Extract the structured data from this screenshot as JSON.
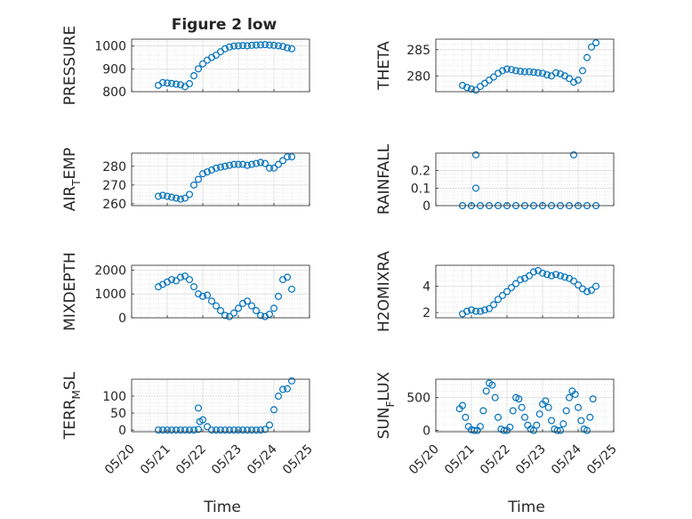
{
  "figure_title": "Figure 2 low",
  "marker_color": "#0072BD",
  "chart_data": [
    {
      "id": "pressure",
      "type": "scatter",
      "ylabel": {
        "main": "PRESSURE"
      },
      "ylim": [
        800,
        1030
      ],
      "yticks": [
        800,
        900,
        1000
      ],
      "ytick_labels": [
        "800",
        "900",
        "1000"
      ],
      "x": [
        "2022-05-20T18:00",
        "2022-05-20T21:00",
        "2022-05-21T00:00",
        "2022-05-21T03:00",
        "2022-05-21T06:00",
        "2022-05-21T09:00",
        "2022-05-21T12:00",
        "2022-05-21T15:00",
        "2022-05-21T18:00",
        "2022-05-21T21:00",
        "2022-05-22T00:00",
        "2022-05-22T03:00",
        "2022-05-22T06:00",
        "2022-05-22T09:00",
        "2022-05-22T12:00",
        "2022-05-22T15:00",
        "2022-05-22T18:00",
        "2022-05-22T21:00",
        "2022-05-23T00:00",
        "2022-05-23T03:00",
        "2022-05-23T06:00",
        "2022-05-23T09:00",
        "2022-05-23T12:00",
        "2022-05-23T15:00",
        "2022-05-23T18:00",
        "2022-05-23T21:00",
        "2022-05-24T00:00",
        "2022-05-24T03:00",
        "2022-05-24T06:00",
        "2022-05-24T09:00",
        "2022-05-24T12:00"
      ],
      "y": [
        828,
        840,
        838,
        836,
        833,
        830,
        822,
        835,
        870,
        900,
        922,
        938,
        950,
        960,
        975,
        988,
        996,
        1000,
        1001,
        1002,
        1001,
        1003,
        1004,
        1005,
        1006,
        1004,
        1003,
        1001,
        998,
        992,
        988
      ]
    },
    {
      "id": "theta",
      "type": "scatter",
      "ylabel": {
        "main": "THETA"
      },
      "ylim": [
        277,
        287
      ],
      "yticks": [
        280,
        285
      ],
      "ytick_labels": [
        "280",
        "285"
      ],
      "x": [
        "2022-05-20T18:00",
        "2022-05-20T21:00",
        "2022-05-21T00:00",
        "2022-05-21T03:00",
        "2022-05-21T06:00",
        "2022-05-21T09:00",
        "2022-05-21T12:00",
        "2022-05-21T15:00",
        "2022-05-21T18:00",
        "2022-05-21T21:00",
        "2022-05-22T00:00",
        "2022-05-22T03:00",
        "2022-05-22T06:00",
        "2022-05-22T09:00",
        "2022-05-22T12:00",
        "2022-05-22T15:00",
        "2022-05-22T18:00",
        "2022-05-22T21:00",
        "2022-05-23T00:00",
        "2022-05-23T03:00",
        "2022-05-23T06:00",
        "2022-05-23T09:00",
        "2022-05-23T12:00",
        "2022-05-23T15:00",
        "2022-05-23T18:00",
        "2022-05-23T21:00",
        "2022-05-24T00:00",
        "2022-05-24T03:00",
        "2022-05-24T06:00",
        "2022-05-24T09:00",
        "2022-05-24T12:00"
      ],
      "y": [
        278.2,
        277.8,
        277.5,
        277.3,
        278.0,
        278.6,
        279.2,
        279.8,
        280.5,
        281.0,
        281.3,
        281.2,
        281.0,
        280.9,
        280.8,
        280.8,
        280.7,
        280.6,
        280.5,
        280.2,
        280.0,
        280.6,
        280.4,
        280.0,
        279.5,
        278.8,
        279.2,
        281.0,
        283.5,
        285.5,
        286.3
      ]
    },
    {
      "id": "air-temp",
      "type": "scatter",
      "ylabel": {
        "main": "AIR",
        "sub": "T",
        "tail": "EMP"
      },
      "ylim": [
        259,
        287
      ],
      "yticks": [
        260,
        270,
        280
      ],
      "ytick_labels": [
        "260",
        "270",
        "280"
      ],
      "x": [
        "2022-05-20T18:00",
        "2022-05-20T21:00",
        "2022-05-21T00:00",
        "2022-05-21T03:00",
        "2022-05-21T06:00",
        "2022-05-21T09:00",
        "2022-05-21T12:00",
        "2022-05-21T15:00",
        "2022-05-21T18:00",
        "2022-05-21T21:00",
        "2022-05-22T00:00",
        "2022-05-22T03:00",
        "2022-05-22T06:00",
        "2022-05-22T09:00",
        "2022-05-22T12:00",
        "2022-05-22T15:00",
        "2022-05-22T18:00",
        "2022-05-22T21:00",
        "2022-05-23T00:00",
        "2022-05-23T03:00",
        "2022-05-23T06:00",
        "2022-05-23T09:00",
        "2022-05-23T12:00",
        "2022-05-23T15:00",
        "2022-05-23T18:00",
        "2022-05-23T21:00",
        "2022-05-24T00:00",
        "2022-05-24T03:00",
        "2022-05-24T06:00",
        "2022-05-24T09:00",
        "2022-05-24T12:00"
      ],
      "y": [
        264,
        264.5,
        264,
        263.5,
        263,
        262.5,
        263,
        265,
        270,
        273,
        276,
        277,
        278,
        279,
        279.5,
        280,
        280.5,
        281,
        281,
        281,
        280.5,
        281,
        281.5,
        282,
        281.5,
        279,
        279,
        281,
        283,
        285,
        285
      ]
    },
    {
      "id": "rainfall",
      "type": "scatter",
      "ylabel": {
        "main": "RAINFALL"
      },
      "ylim": [
        0,
        0.3
      ],
      "yticks": [
        0,
        0.1,
        0.2
      ],
      "ytick_labels": [
        "0",
        "0.1",
        "0.2"
      ],
      "x": [
        "2022-05-20T18:00",
        "2022-05-21T00:00",
        "2022-05-21T06:00",
        "2022-05-21T12:00",
        "2022-05-21T18:00",
        "2022-05-22T00:00",
        "2022-05-22T06:00",
        "2022-05-22T12:00",
        "2022-05-22T18:00",
        "2022-05-23T00:00",
        "2022-05-23T06:00",
        "2022-05-23T12:00",
        "2022-05-23T18:00",
        "2022-05-24T00:00",
        "2022-05-24T06:00",
        "2022-05-24T12:00",
        "2022-05-21T03:00",
        "2022-05-21T03:00",
        "2022-05-23T21:00"
      ],
      "y": [
        0,
        0,
        0,
        0,
        0,
        0,
        0,
        0,
        0,
        0,
        0,
        0,
        0,
        0,
        0,
        0,
        0.29,
        0.1,
        0.29
      ]
    },
    {
      "id": "mixdepth",
      "type": "scatter",
      "ylabel": {
        "main": "MIXDEPTH"
      },
      "ylim": [
        0,
        2200
      ],
      "yticks": [
        0,
        1000,
        2000
      ],
      "ytick_labels": [
        "0",
        "1000",
        "2000"
      ],
      "x": [
        "2022-05-20T18:00",
        "2022-05-20T21:00",
        "2022-05-21T00:00",
        "2022-05-21T03:00",
        "2022-05-21T06:00",
        "2022-05-21T09:00",
        "2022-05-21T12:00",
        "2022-05-21T15:00",
        "2022-05-21T18:00",
        "2022-05-21T21:00",
        "2022-05-22T00:00",
        "2022-05-22T03:00",
        "2022-05-22T06:00",
        "2022-05-22T09:00",
        "2022-05-22T12:00",
        "2022-05-22T15:00",
        "2022-05-22T18:00",
        "2022-05-22T21:00",
        "2022-05-23T00:00",
        "2022-05-23T03:00",
        "2022-05-23T06:00",
        "2022-05-23T09:00",
        "2022-05-23T12:00",
        "2022-05-23T15:00",
        "2022-05-23T18:00",
        "2022-05-23T21:00",
        "2022-05-24T00:00",
        "2022-05-24T03:00",
        "2022-05-24T06:00",
        "2022-05-24T09:00",
        "2022-05-24T12:00"
      ],
      "y": [
        1300,
        1400,
        1500,
        1600,
        1550,
        1700,
        1750,
        1600,
        1300,
        1000,
        900,
        950,
        700,
        500,
        300,
        100,
        50,
        200,
        400,
        600,
        700,
        500,
        300,
        100,
        50,
        150,
        400,
        900,
        1600,
        1700,
        1200
      ]
    },
    {
      "id": "h2omixra",
      "type": "scatter",
      "ylabel": {
        "main": "H2OMIXRA"
      },
      "ylim": [
        1.6,
        5.6
      ],
      "yticks": [
        2,
        4
      ],
      "ytick_labels": [
        "2",
        "4"
      ],
      "x": [
        "2022-05-20T18:00",
        "2022-05-20T21:00",
        "2022-05-21T00:00",
        "2022-05-21T03:00",
        "2022-05-21T06:00",
        "2022-05-21T09:00",
        "2022-05-21T12:00",
        "2022-05-21T15:00",
        "2022-05-21T18:00",
        "2022-05-21T21:00",
        "2022-05-22T00:00",
        "2022-05-22T03:00",
        "2022-05-22T06:00",
        "2022-05-22T09:00",
        "2022-05-22T12:00",
        "2022-05-22T15:00",
        "2022-05-22T18:00",
        "2022-05-22T21:00",
        "2022-05-23T00:00",
        "2022-05-23T03:00",
        "2022-05-23T06:00",
        "2022-05-23T09:00",
        "2022-05-23T12:00",
        "2022-05-23T15:00",
        "2022-05-23T18:00",
        "2022-05-23T21:00",
        "2022-05-24T00:00",
        "2022-05-24T03:00",
        "2022-05-24T06:00",
        "2022-05-24T09:00",
        "2022-05-24T12:00"
      ],
      "y": [
        1.9,
        2.1,
        2.2,
        2.1,
        2.1,
        2.2,
        2.3,
        2.6,
        3.0,
        3.3,
        3.6,
        3.9,
        4.2,
        4.5,
        4.6,
        4.8,
        5.1,
        5.2,
        5.0,
        4.9,
        4.8,
        4.9,
        4.8,
        4.7,
        4.6,
        4.4,
        4.1,
        3.8,
        3.6,
        3.7,
        4.0
      ]
    },
    {
      "id": "terr-msl",
      "type": "scatter",
      "ylabel": {
        "main": "TERR",
        "sub": "M",
        "tail": "SL"
      },
      "ylim": [
        -5,
        150
      ],
      "yticks": [
        0,
        50,
        100
      ],
      "ytick_labels": [
        "0",
        "50",
        "100"
      ],
      "x": [
        "2022-05-20T18:00",
        "2022-05-20T21:00",
        "2022-05-21T00:00",
        "2022-05-21T03:00",
        "2022-05-21T06:00",
        "2022-05-21T09:00",
        "2022-05-21T12:00",
        "2022-05-21T15:00",
        "2022-05-21T18:00",
        "2022-05-21T21:00",
        "2022-05-22T00:00",
        "2022-05-22T03:00",
        "2022-05-22T06:00",
        "2022-05-22T09:00",
        "2022-05-22T12:00",
        "2022-05-22T15:00",
        "2022-05-22T18:00",
        "2022-05-22T21:00",
        "2022-05-23T00:00",
        "2022-05-23T03:00",
        "2022-05-23T06:00",
        "2022-05-23T09:00",
        "2022-05-23T12:00",
        "2022-05-23T15:00",
        "2022-05-23T18:00",
        "2022-05-23T21:00",
        "2022-05-24T00:00",
        "2022-05-24T03:00",
        "2022-05-24T06:00",
        "2022-05-24T09:00",
        "2022-05-24T12:00",
        "2022-05-21T21:00",
        "2022-05-21T22:00"
      ],
      "y": [
        0,
        0,
        0,
        0,
        0,
        0,
        0,
        0,
        0,
        2,
        30,
        10,
        0,
        0,
        0,
        0,
        0,
        0,
        0,
        0,
        0,
        0,
        0,
        0,
        2,
        15,
        60,
        100,
        120,
        122,
        145,
        65,
        25
      ]
    },
    {
      "id": "sun-flux",
      "type": "scatter",
      "ylabel": {
        "main": "SUN",
        "sub": "F",
        "tail": "LUX"
      },
      "ylim": [
        -20,
        780
      ],
      "yticks": [
        0,
        500
      ],
      "ytick_labels": [
        "0",
        "500"
      ],
      "x": [
        "2022-05-20T16:00",
        "2022-05-20T18:00",
        "2022-05-20T20:00",
        "2022-05-20T22:00",
        "2022-05-21T00:00",
        "2022-05-21T02:00",
        "2022-05-21T04:00",
        "2022-05-21T06:00",
        "2022-05-21T08:00",
        "2022-05-21T10:00",
        "2022-05-21T12:00",
        "2022-05-21T14:00",
        "2022-05-21T16:00",
        "2022-05-21T18:00",
        "2022-05-21T20:00",
        "2022-05-21T22:00",
        "2022-05-22T00:00",
        "2022-05-22T02:00",
        "2022-05-22T04:00",
        "2022-05-22T06:00",
        "2022-05-22T08:00",
        "2022-05-22T10:00",
        "2022-05-22T12:00",
        "2022-05-22T14:00",
        "2022-05-22T16:00",
        "2022-05-22T18:00",
        "2022-05-22T20:00",
        "2022-05-22T22:00",
        "2022-05-23T00:00",
        "2022-05-23T02:00",
        "2022-05-23T04:00",
        "2022-05-23T06:00",
        "2022-05-23T08:00",
        "2022-05-23T10:00",
        "2022-05-23T12:00",
        "2022-05-23T14:00",
        "2022-05-23T16:00",
        "2022-05-23T18:00",
        "2022-05-23T20:00",
        "2022-05-23T22:00",
        "2022-05-24T00:00",
        "2022-05-24T02:00",
        "2022-05-24T04:00",
        "2022-05-24T06:00",
        "2022-05-24T08:00",
        "2022-05-24T10:00"
      ],
      "y": [
        330,
        380,
        200,
        60,
        10,
        0,
        0,
        60,
        300,
        600,
        720,
        690,
        500,
        200,
        20,
        0,
        0,
        50,
        300,
        500,
        480,
        350,
        200,
        80,
        20,
        0,
        80,
        250,
        400,
        450,
        350,
        150,
        20,
        0,
        0,
        100,
        300,
        500,
        600,
        550,
        350,
        150,
        20,
        0,
        200,
        480
      ]
    }
  ],
  "shared_x_axis": {
    "xlabel": "Time",
    "xlim": [
      "2022-05-20T00:00",
      "2022-05-25T00:00"
    ],
    "xticks": [
      "2022-05-20T00:00",
      "2022-05-21T00:00",
      "2022-05-22T00:00",
      "2022-05-23T00:00",
      "2022-05-24T00:00",
      "2022-05-25T00:00"
    ],
    "xtick_labels": [
      "05/20",
      "05/21",
      "05/22",
      "05/23",
      "05/24",
      "05/25"
    ],
    "xtick_rotation_deg": 45
  },
  "grid": {
    "major": true,
    "minor": true
  },
  "layout": {
    "rows": 4,
    "cols": 2,
    "xtick_labels_on_bottom_row_only": true
  }
}
